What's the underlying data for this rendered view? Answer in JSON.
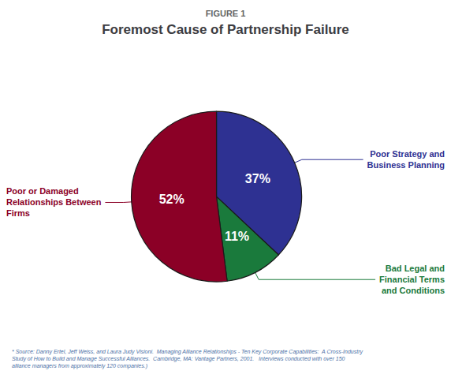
{
  "chart_data": {
    "type": "pie",
    "title": "Foremost Cause of Partnership Failure",
    "subtitle": "FIGURE 1",
    "categories": [
      "Poor Strategy and\nBusiness Planning",
      "Bad Legal and\nFinancial Terms\nand Conditions",
      "Poor or Damaged\nRelationships Between\nFirms"
    ],
    "values": [
      37,
      11,
      52
    ],
    "value_labels": [
      "37%",
      "11%",
      "52%"
    ],
    "colors": [
      "#2E3192",
      "#1A7A3C",
      "#8B0026"
    ],
    "data_labels": true,
    "legend": false,
    "annotations": [
      "* Source: Danny Ertel, Jeff Weiss, and Laura Judy Visioni.  Managing Alliance Relationships - Ten Key Corporate Capabilities:  A Cross-Industry\nStudy of How to Build and Manage Successful Alliances.  Cambridge, MA: Vantage Partners, 2001.   Interviews conducted with over 150\nalliance managers from approximately 120 companies.)"
    ]
  }
}
